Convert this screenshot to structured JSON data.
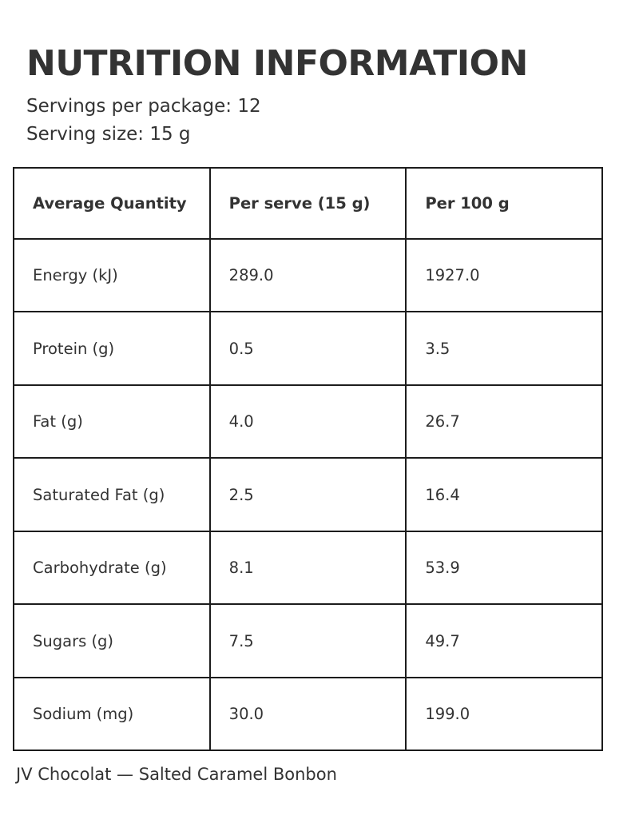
{
  "page": {
    "title": "NUTRITION INFORMATION",
    "servings_line": "Servings per package: 12",
    "serving_size_line": "Serving size: 15 g",
    "footer": "JV Chocolat — Salted Caramel Bonbon"
  },
  "table": {
    "headers": [
      "Average Quantity",
      "Per serve (15 g)",
      "Per 100 g"
    ],
    "rows": [
      {
        "label": "Energy (kJ)",
        "per_serve": "289.0",
        "per_100g": "1927.0"
      },
      {
        "label": "Protein (g)",
        "per_serve": "0.5",
        "per_100g": "3.5"
      },
      {
        "label": "Fat (g)",
        "per_serve": "4.0",
        "per_100g": "26.7"
      },
      {
        "label": "Saturated Fat (g)",
        "per_serve": "2.5",
        "per_100g": "16.4"
      },
      {
        "label": "Carbohydrate (g)",
        "per_serve": "8.1",
        "per_100g": "53.9"
      },
      {
        "label": "Sugars (g)",
        "per_serve": "7.5",
        "per_100g": "49.7"
      },
      {
        "label": "Sodium (mg)",
        "per_serve": "30.0",
        "per_100g": "199.0"
      }
    ]
  },
  "colors": {
    "text": "#333333",
    "border": "#1c1c1c",
    "background": "#ffffff"
  }
}
